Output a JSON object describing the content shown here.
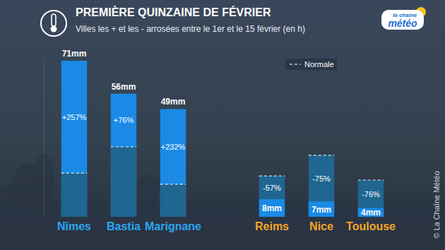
{
  "chart_data": {
    "type": "bar",
    "title": "PREMIÈRE QUINZAINE DE FÉVRIER",
    "subtitle": "Villes les + et les - arrosées entre le 1er et le 15 février (en h)",
    "categories": [
      "Nîmes",
      "Bastia",
      "Marignane",
      "Reims",
      "Nice",
      "Toulouse"
    ],
    "values": [
      71,
      56,
      49,
      8,
      7,
      4
    ],
    "value_labels": [
      "71mm",
      "56mm",
      "49mm",
      "8mm",
      "7mm",
      "4mm"
    ],
    "color": "#1a8ae6",
    "data_labels": true,
    "changes": [
      257,
      76,
      232,
      -57,
      -75,
      -76
    ],
    "change_labels": [
      "+257%",
      "+76%",
      "+232%",
      "-57%",
      "-75%",
      "-76%"
    ],
    "series": [
      {
        "name": "Normale",
        "values": [
          19.9,
          31.8,
          14.8,
          18.6,
          28,
          16.7
        ],
        "color": "#1f6690",
        "line_style": "dashed"
      }
    ],
    "legend": "top-right",
    "ylim": [
      0,
      71
    ],
    "yticks": [],
    "tick_labels": false,
    "grid": false,
    "logo": [
      "la chaîne",
      "météo"
    ],
    "copyright": "© La Chaîne Météo"
  }
}
